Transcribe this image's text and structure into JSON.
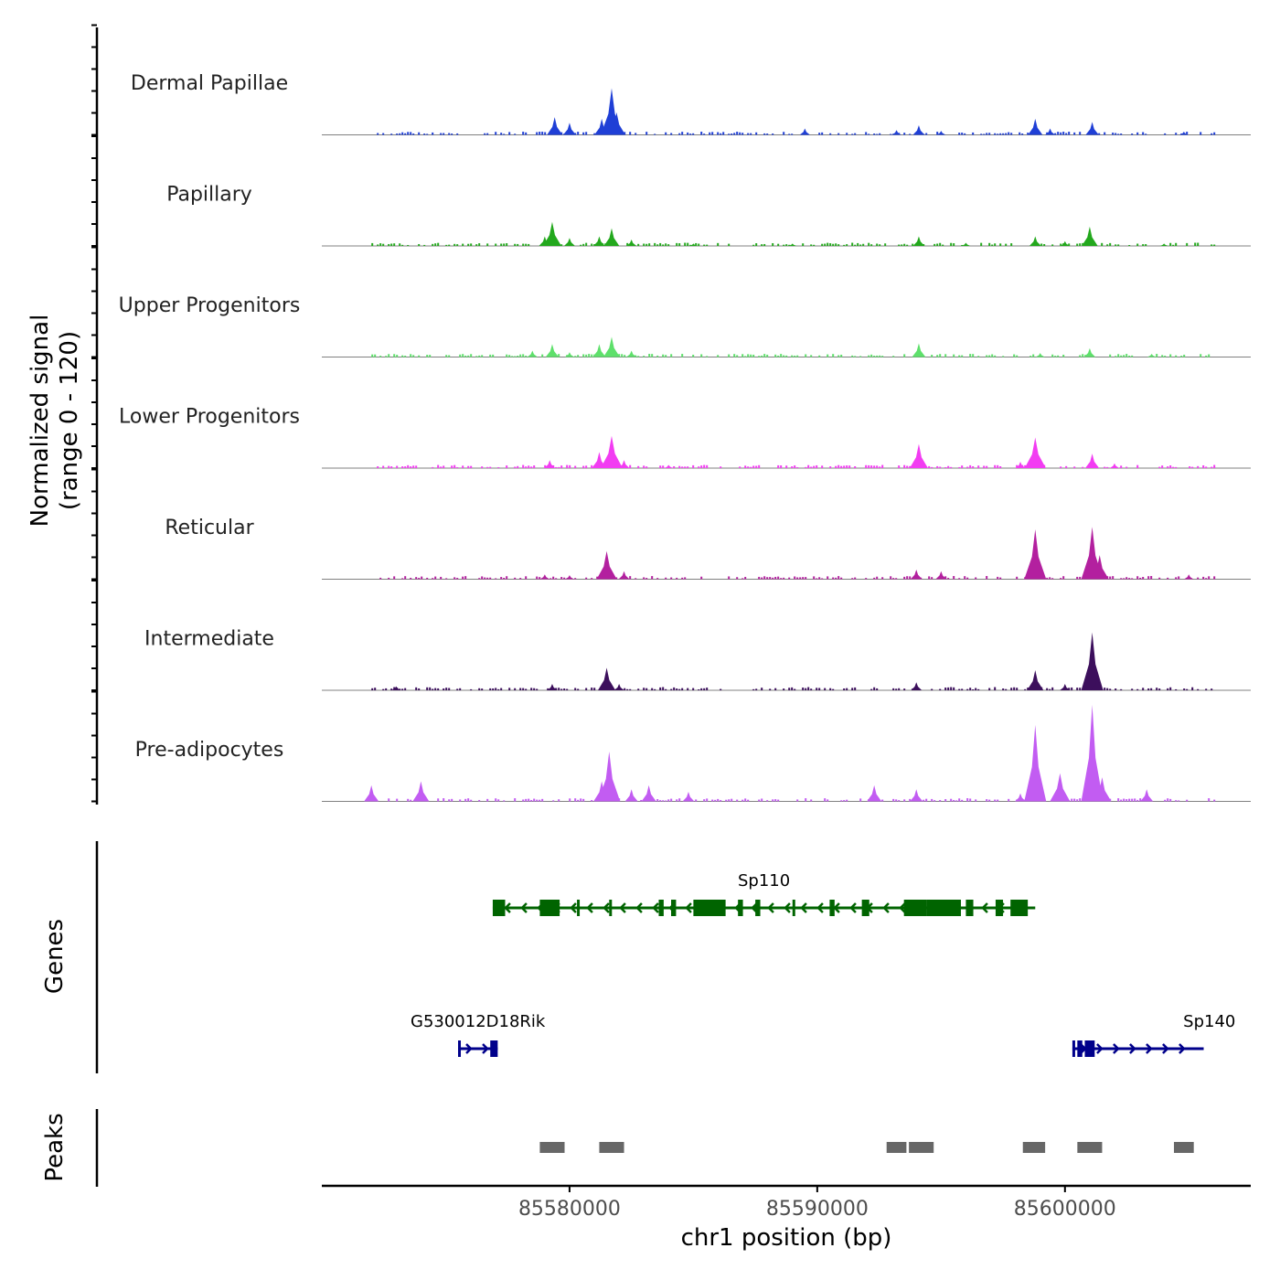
{
  "chart_data": {
    "type": "area",
    "title": "",
    "xlabel": "chr1 position (bp)",
    "ylabel": "Normalized signal",
    "ylabel_range": "(range 0 - 120)",
    "xlim": [
      85570000,
      85607500
    ],
    "ylim": [
      0,
      120
    ],
    "x_ticks": [
      85580000,
      85590000,
      85600000
    ],
    "x_tick_labels": [
      "85580000",
      "85590000",
      "85600000"
    ],
    "track_labels": {
      "genes": "Genes",
      "peaks": "Peaks"
    },
    "series": [
      {
        "name": "Dermal Papillae",
        "color": "#1f3fd6",
        "peaks": [
          [
            85579400,
            22
          ],
          [
            85580000,
            15
          ],
          [
            85581300,
            20
          ],
          [
            85581700,
            58
          ],
          [
            85581900,
            28
          ],
          [
            85589500,
            8
          ],
          [
            85593200,
            6
          ],
          [
            85594100,
            12
          ],
          [
            85595000,
            5
          ],
          [
            85598800,
            20
          ],
          [
            85599400,
            8
          ],
          [
            85601100,
            16
          ],
          [
            85604800,
            4
          ]
        ]
      },
      {
        "name": "Papillary",
        "color": "#23a81d",
        "peaks": [
          [
            85579000,
            12
          ],
          [
            85579300,
            30
          ],
          [
            85580000,
            10
          ],
          [
            85581200,
            12
          ],
          [
            85581700,
            22
          ],
          [
            85582500,
            8
          ],
          [
            85585000,
            3
          ],
          [
            85589000,
            3
          ],
          [
            85594100,
            12
          ],
          [
            85596000,
            4
          ],
          [
            85598800,
            12
          ],
          [
            85600000,
            6
          ],
          [
            85601000,
            24
          ],
          [
            85604000,
            3
          ]
        ]
      },
      {
        "name": "Upper Progenitors",
        "color": "#5ee06b",
        "peaks": [
          [
            85578500,
            8
          ],
          [
            85579300,
            16
          ],
          [
            85580000,
            6
          ],
          [
            85581200,
            16
          ],
          [
            85581700,
            25
          ],
          [
            85582500,
            8
          ],
          [
            85594100,
            17
          ],
          [
            85599000,
            5
          ],
          [
            85601000,
            11
          ],
          [
            85603500,
            4
          ]
        ]
      },
      {
        "name": "Lower Progenitors",
        "color": "#f23cf2",
        "peaks": [
          [
            85579200,
            10
          ],
          [
            85581200,
            20
          ],
          [
            85581700,
            40
          ],
          [
            85582200,
            10
          ],
          [
            85584000,
            4
          ],
          [
            85594100,
            30
          ],
          [
            85598200,
            8
          ],
          [
            85598800,
            38
          ],
          [
            85601100,
            18
          ],
          [
            85602000,
            6
          ]
        ]
      },
      {
        "name": "Reticular",
        "color": "#b3209f",
        "peaks": [
          [
            85579000,
            6
          ],
          [
            85580000,
            5
          ],
          [
            85581500,
            35
          ],
          [
            85582200,
            10
          ],
          [
            85594000,
            12
          ],
          [
            85595000,
            10
          ],
          [
            85598800,
            62
          ],
          [
            85601100,
            65
          ],
          [
            85601400,
            30
          ],
          [
            85605000,
            6
          ]
        ]
      },
      {
        "name": "Intermediate",
        "color": "#3c0f5c",
        "peaks": [
          [
            85573000,
            5
          ],
          [
            85579300,
            8
          ],
          [
            85581500,
            28
          ],
          [
            85582000,
            8
          ],
          [
            85594000,
            10
          ],
          [
            85598800,
            25
          ],
          [
            85600000,
            8
          ],
          [
            85601100,
            72
          ],
          [
            85601300,
            15
          ]
        ]
      },
      {
        "name": "Pre-adipocytes",
        "color": "#c25cf2",
        "peaks": [
          [
            85572000,
            20
          ],
          [
            85574000,
            25
          ],
          [
            85581300,
            25
          ],
          [
            85581600,
            62
          ],
          [
            85582500,
            15
          ],
          [
            85583200,
            20
          ],
          [
            85584800,
            12
          ],
          [
            85592300,
            20
          ],
          [
            85594000,
            15
          ],
          [
            85598200,
            10
          ],
          [
            85598800,
            95
          ],
          [
            85599800,
            35
          ],
          [
            85601100,
            120
          ],
          [
            85601500,
            30
          ],
          [
            85603300,
            15
          ]
        ]
      }
    ],
    "genes": [
      {
        "name": "Sp110",
        "strand": "-",
        "start": 85576900,
        "end": 85598800,
        "color": "#006400",
        "exons": [
          [
            85576900,
            85577400
          ],
          [
            85578800,
            85579600
          ],
          [
            85580300,
            85580400
          ],
          [
            85581600,
            85581700
          ],
          [
            85583600,
            85583800
          ],
          [
            85584100,
            85584300
          ],
          [
            85585000,
            85586300
          ],
          [
            85586800,
            85587000
          ],
          [
            85587500,
            85587700
          ],
          [
            85589000,
            85589100
          ],
          [
            85590500,
            85590700
          ],
          [
            85591800,
            85592100
          ],
          [
            85593500,
            85594400
          ],
          [
            85594400,
            85595800
          ],
          [
            85596000,
            85596300
          ],
          [
            85597200,
            85597500
          ],
          [
            85597800,
            85598500
          ]
        ]
      },
      {
        "name": "G530012D18Rik",
        "strand": "+",
        "start": 85575500,
        "end": 85577100,
        "color": "#00008b",
        "exons": [
          [
            85575500,
            85575600
          ],
          [
            85576800,
            85577100
          ]
        ]
      },
      {
        "name": "Sp140",
        "strand": "+",
        "start": 85600300,
        "end": 85605600,
        "color": "#00008b",
        "exons": [
          [
            85600300,
            85600400
          ],
          [
            85600500,
            85600700
          ],
          [
            85600800,
            85601200
          ]
        ]
      }
    ],
    "peak_regions": [
      [
        85578800,
        85579800
      ],
      [
        85581200,
        85582200
      ],
      [
        85592800,
        85593600
      ],
      [
        85593700,
        85594700
      ],
      [
        85598300,
        85599200
      ],
      [
        85600500,
        85601500
      ],
      [
        85604400,
        85605200
      ]
    ]
  }
}
